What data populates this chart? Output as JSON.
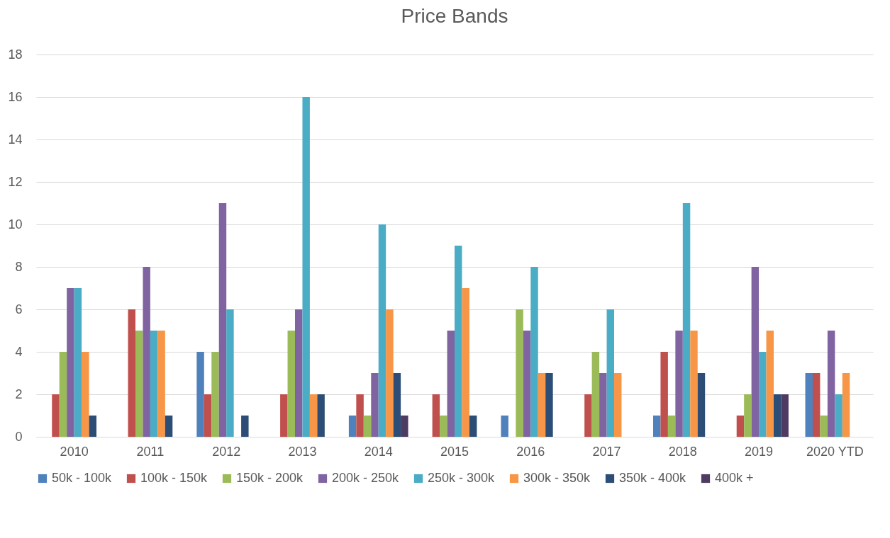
{
  "chart_data": {
    "type": "bar",
    "title": "Price Bands",
    "categories": [
      "2010",
      "2011",
      "2012",
      "2013",
      "2014",
      "2015",
      "2016",
      "2017",
      "2018",
      "2019",
      "2020 YTD"
    ],
    "series": [
      {
        "name": "50k - 100k",
        "color": "#4f81bd",
        "values": [
          0,
          0,
          4,
          0,
          1,
          0,
          1,
          0,
          1,
          0,
          3
        ]
      },
      {
        "name": "100k - 150k",
        "color": "#c0504d",
        "values": [
          2,
          6,
          2,
          2,
          2,
          2,
          0,
          2,
          4,
          1,
          3
        ]
      },
      {
        "name": "150k - 200k",
        "color": "#9bbb59",
        "values": [
          4,
          5,
          4,
          5,
          1,
          1,
          6,
          4,
          1,
          2,
          1
        ]
      },
      {
        "name": "200k - 250k",
        "color": "#8064a2",
        "values": [
          7,
          8,
          11,
          6,
          3,
          5,
          5,
          3,
          5,
          8,
          5
        ]
      },
      {
        "name": "250k - 300k",
        "color": "#4bacc6",
        "values": [
          7,
          5,
          6,
          16,
          10,
          9,
          8,
          6,
          11,
          4,
          2
        ]
      },
      {
        "name": "300k - 350k",
        "color": "#f79646",
        "values": [
          4,
          5,
          0,
          2,
          6,
          7,
          3,
          3,
          5,
          5,
          3
        ]
      },
      {
        "name": "350k - 400k",
        "color": "#2c4d75",
        "values": [
          1,
          1,
          1,
          2,
          3,
          1,
          3,
          0,
          3,
          2,
          0
        ]
      },
      {
        "name": "400k +",
        "color": "#4d3b62",
        "values": [
          0,
          0,
          0,
          0,
          1,
          0,
          0,
          0,
          0,
          2,
          0
        ]
      }
    ],
    "ylim": [
      0,
      18
    ],
    "yticks": [
      0,
      2,
      4,
      6,
      8,
      10,
      12,
      14,
      16,
      18
    ],
    "grid": true,
    "legend": "bottom"
  }
}
